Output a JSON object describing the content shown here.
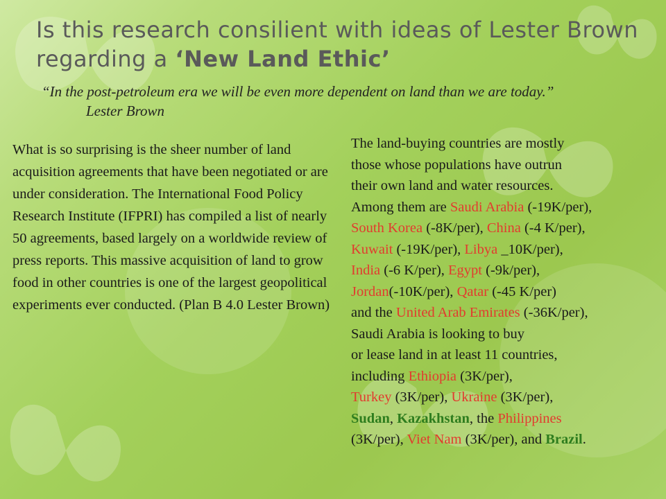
{
  "title": {
    "part1": "Is this research consilient with ideas of Lester Brown regarding a ",
    "emph": "‘New Land Ethic’"
  },
  "quote": {
    "text": "“In the post-petroleum era we will be even more dependent on land than we are today.”",
    "author": "Lester Brown"
  },
  "left_paragraph": "What is so surprising is the sheer number of land acquisition agreements that have been negotiated or are under consideration. The International Food Policy Research Institute (IFPRI) has compiled a list of nearly 50 agreements, based largely on a worldwide review of press reports. This massive acquisition of land to grow food in other countries is one of the largest geopolitical experiments ever conducted. (Plan B 4.0 Lester Brown)",
  "right": {
    "l1": "The land-buying countries are mostly",
    "l2": "those whose populations have outrun",
    "l3": "their own land and water resources.",
    "l4_pre": "Among them are ",
    "saudi": "Saudi Arabia",
    "saudi_val": " (-19K/per),",
    "skorea": "South Korea",
    "skorea_val": " (-8K/per), ",
    "china": "China",
    "china_val": " (-4 K/per),",
    "kuwait": "Kuwait",
    "kuwait_val": " (-19K/per), ",
    "libya": "Libya",
    "libya_val": " _10K/per),",
    "india": "India",
    "india_val": " (-6 K/per), ",
    "egypt": "Egypt",
    "egypt_val": " (-9k/per),",
    "jordan": "Jordan",
    "jordan_val": "(-10K/per), ",
    "qatar": "Qatar",
    "qatar_val": " (-45 K/per)",
    "uae_pre": "and the ",
    "uae": "United Arab Emirates",
    "uae_val": " (-36K/per),",
    "l11": "Saudi Arabia is looking to buy",
    "l12": "or lease land in at least 11 countries,",
    "l13_pre": "including ",
    "ethiopia": "Ethiopia",
    "ethiopia_val": " (3K/per),",
    "turkey": "Turkey",
    "turkey_val": " (3K/per), ",
    "ukraine": "Ukraine",
    "ukraine_val": " (3K/per),",
    "sudan": "Sudan",
    "sep1": ", ",
    "kazakhstan": "Kazakhstan",
    "sep2": ", the ",
    "philippines": "Philippines",
    "l16_pre": "(3K/per), ",
    "vietnam": "Viet Nam",
    "vietnam_val": " (3K/per), and ",
    "brazil": "Brazil",
    "end": "."
  },
  "colors": {
    "highlight_red": "#e23b2e",
    "highlight_green": "#2e7d1e",
    "title_gray": "#5a5a5a"
  }
}
